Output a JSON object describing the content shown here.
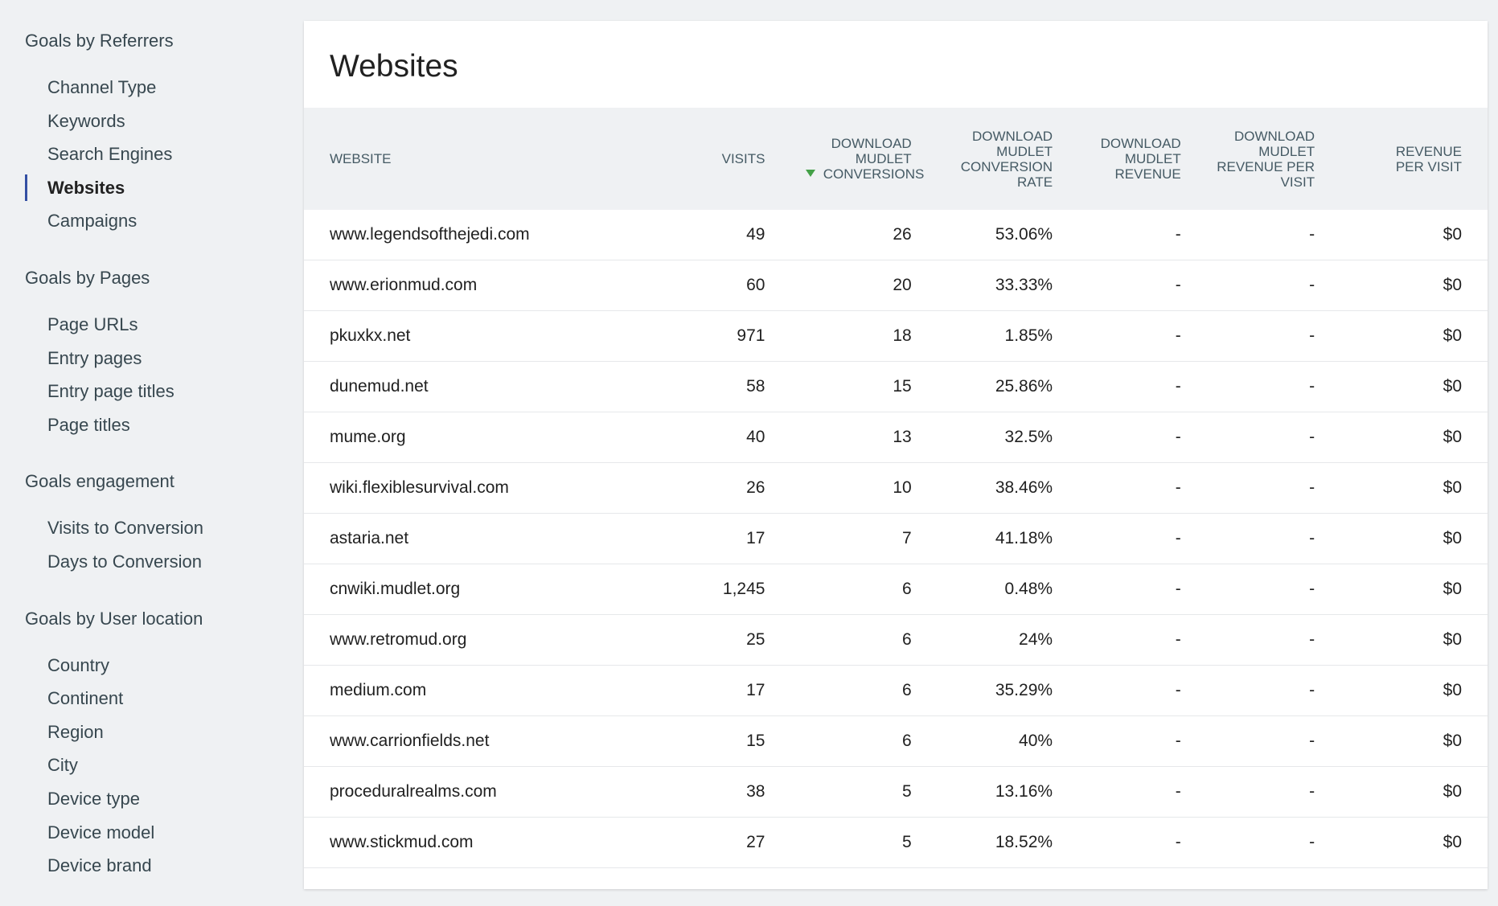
{
  "sidebar": [
    {
      "title": "Goals by Referrers",
      "items": [
        "Channel Type",
        "Keywords",
        "Search Engines",
        "Websites",
        "Campaigns"
      ],
      "active": 3
    },
    {
      "title": "Goals by Pages",
      "items": [
        "Page URLs",
        "Entry pages",
        "Entry page titles",
        "Page titles"
      ]
    },
    {
      "title": "Goals engagement",
      "items": [
        "Visits to Conversion",
        "Days to Conversion"
      ]
    },
    {
      "title": "Goals by User location",
      "items": [
        "Country",
        "Continent",
        "Region",
        "City",
        "Device type",
        "Device model",
        "Device brand"
      ]
    }
  ],
  "report": {
    "title": "Websites",
    "columns": [
      "WEBSITE",
      "VISITS",
      "DOWNLOAD MUDLET CONVERSIONS",
      "DOWNLOAD MUDLET CONVERSION RATE",
      "DOWNLOAD MUDLET REVENUE",
      "DOWNLOAD MUDLET REVENUE PER VISIT",
      "REVENUE PER VISIT"
    ],
    "sorted_column": 2,
    "rows": [
      [
        "www.legendsofthejedi.com",
        "49",
        "26",
        "53.06%",
        "-",
        "-",
        "$0"
      ],
      [
        "www.erionmud.com",
        "60",
        "20",
        "33.33%",
        "-",
        "-",
        "$0"
      ],
      [
        "pkuxkx.net",
        "971",
        "18",
        "1.85%",
        "-",
        "-",
        "$0"
      ],
      [
        "dunemud.net",
        "58",
        "15",
        "25.86%",
        "-",
        "-",
        "$0"
      ],
      [
        "mume.org",
        "40",
        "13",
        "32.5%",
        "-",
        "-",
        "$0"
      ],
      [
        "wiki.flexiblesurvival.com",
        "26",
        "10",
        "38.46%",
        "-",
        "-",
        "$0"
      ],
      [
        "astaria.net",
        "17",
        "7",
        "41.18%",
        "-",
        "-",
        "$0"
      ],
      [
        "cnwiki.mudlet.org",
        "1,245",
        "6",
        "0.48%",
        "-",
        "-",
        "$0"
      ],
      [
        "www.retromud.org",
        "25",
        "6",
        "24%",
        "-",
        "-",
        "$0"
      ],
      [
        "medium.com",
        "17",
        "6",
        "35.29%",
        "-",
        "-",
        "$0"
      ],
      [
        "www.carrionfields.net",
        "15",
        "6",
        "40%",
        "-",
        "-",
        "$0"
      ],
      [
        "proceduralrealms.com",
        "38",
        "5",
        "13.16%",
        "-",
        "-",
        "$0"
      ],
      [
        "www.stickmud.com",
        "27",
        "5",
        "18.52%",
        "-",
        "-",
        "$0"
      ]
    ]
  }
}
